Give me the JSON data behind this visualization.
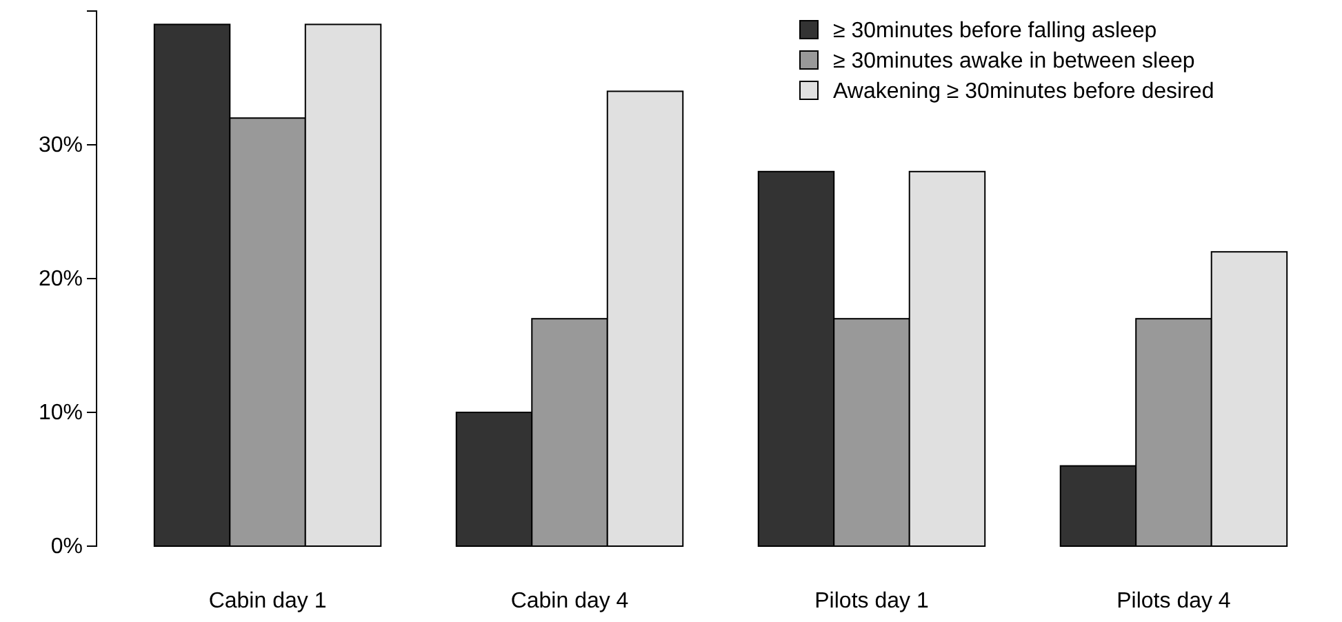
{
  "chart_data": {
    "type": "bar",
    "categories": [
      "Cabin day 1",
      "Cabin day 4",
      "Pilots day 1",
      "Pilots day 4"
    ],
    "series": [
      {
        "name": "≥ 30minutes before falling asleep",
        "color": "#333333",
        "values": [
          39,
          10,
          28,
          6
        ]
      },
      {
        "name": "≥ 30minutes awake in between sleep",
        "color": "#999999",
        "values": [
          32,
          17,
          17,
          17
        ]
      },
      {
        "name": "Awakening ≥ 30minutes before desired",
        "color": "#e0e0e0",
        "values": [
          39,
          34,
          28,
          22
        ]
      }
    ],
    "ylim": [
      0,
      40
    ],
    "yticks": [
      {
        "value": 0,
        "label": "0%"
      },
      {
        "value": 10,
        "label": "10%"
      },
      {
        "value": 20,
        "label": "20%"
      },
      {
        "value": 30,
        "label": "30%"
      }
    ],
    "grid": false,
    "legend": "top right"
  }
}
